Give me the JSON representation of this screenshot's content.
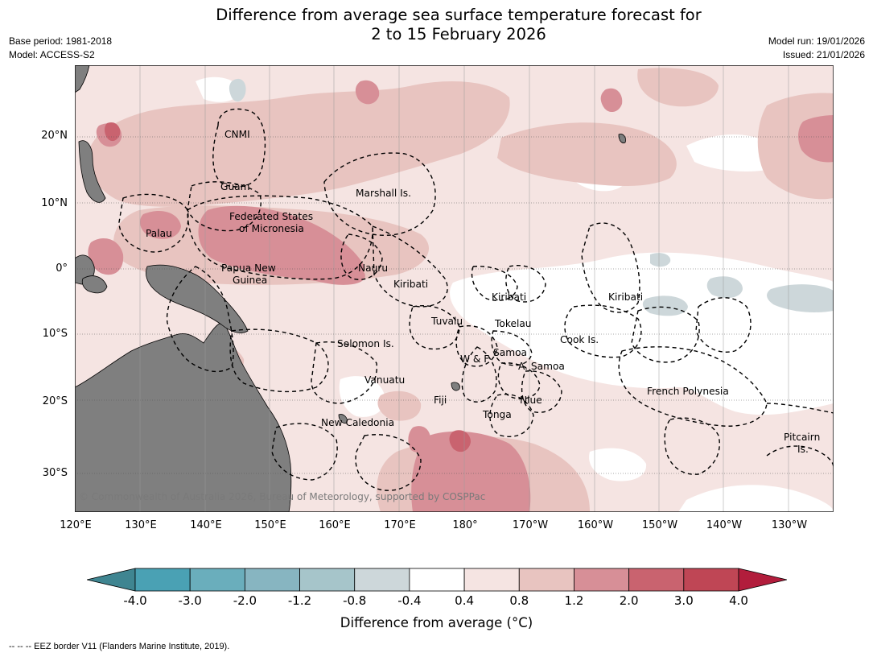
{
  "title_line1": "Difference from average sea surface temperature forecast for",
  "title_line2": "2 to 15 February 2026",
  "base_period": "Base period: 1981-2018",
  "model": "Model: ACCESS-S2",
  "model_run": "Model run: 19/01/2026",
  "issued": "Issued: 21/01/2026",
  "lat_labels": [
    "20°N",
    "10°N",
    "0°",
    "10°S",
    "20°S",
    "30°S"
  ],
  "lon_labels": [
    "120°E",
    "130°E",
    "140°E",
    "150°E",
    "160°E",
    "170°E",
    "180°",
    "170°W",
    "160°W",
    "150°W",
    "140°W",
    "130°W"
  ],
  "places": {
    "cnmi": "CNMI",
    "guam": "Guam",
    "marshall": "Marshall Is.",
    "fsm1": "Federated States",
    "fsm2": "of Micronesia",
    "palau": "Palau",
    "png1": "Papua New",
    "png2": "Guinea",
    "nauru": "Nauru",
    "kiribati_west": "Kiribati",
    "kiribati_central": "Kiribati",
    "kiribati_east": "Kiribati",
    "tuvalu": "Tuvalu",
    "tokelau": "Tokelau",
    "cook": "Cook Is.",
    "solomon": "Solomon Is.",
    "wf": "W & F",
    "samoa": "Samoa",
    "asamoa": "A. Samoa",
    "vanuatu": "Vanuatu",
    "fiji": "Fiji",
    "niue": "Niue",
    "tonga": "Tonga",
    "newcal": "New Caledonia",
    "frpoly": "French Polynesia",
    "pitcairn1": "Pitcairn",
    "pitcairn2": "Is."
  },
  "copyright": "© Commonwealth of Australia 2026, Bureau of Meteorology, supported by COSPPac",
  "colorbar": {
    "ticks": [
      "-4.0",
      "-3.0",
      "-2.0",
      "-1.2",
      "-0.8",
      "-0.4",
      "0.4",
      "0.8",
      "1.2",
      "2.0",
      "3.0",
      "4.0"
    ],
    "colors": [
      "#3f8591",
      "#4aa1b4",
      "#6aaebc",
      "#87b5c1",
      "#a6c5ca",
      "#cdd7da",
      "#ffffff",
      "#f5e4e2",
      "#e8c4c0",
      "#d78f97",
      "#c9636f",
      "#bf4655",
      "#b21d3c"
    ],
    "label": "Difference from average (°C)"
  },
  "footer": "--  --  -- EEZ border V11 (Flanders Marine Institute, 2019)."
}
